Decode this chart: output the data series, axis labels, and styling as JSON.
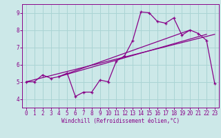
{
  "background_color": "#cce8e8",
  "grid_color": "#aad4d4",
  "line_color": "#880088",
  "xlabel": "Windchill (Refroidissement éolien,°C)",
  "xlim": [
    -0.5,
    23.5
  ],
  "ylim": [
    3.5,
    9.5
  ],
  "xticks": [
    0,
    1,
    2,
    3,
    4,
    5,
    6,
    7,
    8,
    9,
    10,
    11,
    12,
    13,
    14,
    15,
    16,
    17,
    18,
    19,
    20,
    21,
    22,
    23
  ],
  "yticks": [
    4,
    5,
    6,
    7,
    8,
    9
  ],
  "series1_x": [
    0,
    1,
    2,
    3,
    4,
    5,
    6,
    7,
    8,
    9,
    10,
    11,
    12,
    13,
    14,
    15,
    16,
    17,
    18,
    19,
    20,
    21,
    22,
    23
  ],
  "series1_y": [
    5.0,
    5.0,
    5.4,
    5.2,
    5.3,
    5.5,
    4.15,
    4.4,
    4.4,
    5.1,
    5.0,
    6.2,
    6.5,
    7.4,
    9.05,
    9.0,
    8.5,
    8.4,
    8.7,
    7.7,
    8.0,
    7.8,
    7.4,
    4.9
  ],
  "series2_x": [
    0,
    23
  ],
  "series2_y": [
    5.0,
    7.75
  ],
  "series3_x": [
    4,
    22
  ],
  "series3_y": [
    5.3,
    7.75
  ],
  "series4_x": [
    4,
    20
  ],
  "series4_y": [
    5.3,
    8.0
  ],
  "xlabel_color": "#880088",
  "title_color": "#880088",
  "tick_color": "#880088",
  "spine_color": "#880088"
}
